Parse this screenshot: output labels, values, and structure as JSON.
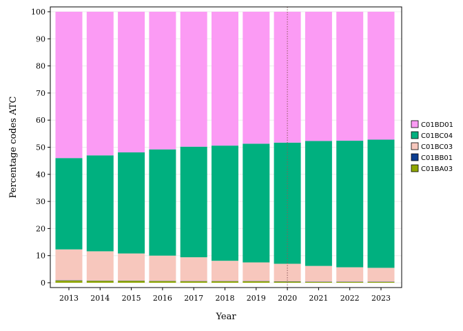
{
  "chart_data": {
    "type": "bar",
    "stacked": true,
    "title": "",
    "xlabel": "Year",
    "ylabel": "Percentage codes ATC",
    "ylim": [
      0,
      100
    ],
    "yticks": [
      0,
      10,
      20,
      30,
      40,
      50,
      60,
      70,
      80,
      90,
      100
    ],
    "grid": true,
    "legend_position": "right",
    "reference_line_x": "2020",
    "categories": [
      "2013",
      "2014",
      "2015",
      "2016",
      "2017",
      "2018",
      "2019",
      "2020",
      "2021",
      "2022",
      "2023"
    ],
    "series": [
      {
        "name": "C01BA03",
        "color": "#8fa600",
        "values": [
          0.8,
          0.7,
          0.7,
          0.6,
          0.5,
          0.5,
          0.5,
          0.4,
          0.3,
          0.3,
          0.3
        ]
      },
      {
        "name": "C01BB01",
        "color": "#0b3d91",
        "values": [
          0.1,
          0.1,
          0.1,
          0.1,
          0.1,
          0.1,
          0.1,
          0.1,
          0.1,
          0.1,
          0.1
        ]
      },
      {
        "name": "C01BC03",
        "color": "#f7c7bd",
        "values": [
          11.4,
          10.8,
          10.0,
          9.3,
          8.8,
          7.5,
          6.9,
          6.5,
          5.8,
          5.3,
          5.1
        ]
      },
      {
        "name": "C01BC04",
        "color": "#00b07f",
        "values": [
          33.7,
          35.4,
          37.3,
          39.2,
          40.8,
          42.5,
          43.8,
          44.7,
          46.1,
          46.7,
          47.3
        ]
      },
      {
        "name": "C01BD01",
        "color": "#fb9bf4",
        "values": [
          54.0,
          53.0,
          51.9,
          50.8,
          49.8,
          49.4,
          48.7,
          48.3,
          47.7,
          47.6,
          47.2
        ]
      }
    ],
    "legend_order": [
      "C01BD01",
      "C01BC04",
      "C01BC03",
      "C01BB01",
      "C01BA03"
    ]
  }
}
